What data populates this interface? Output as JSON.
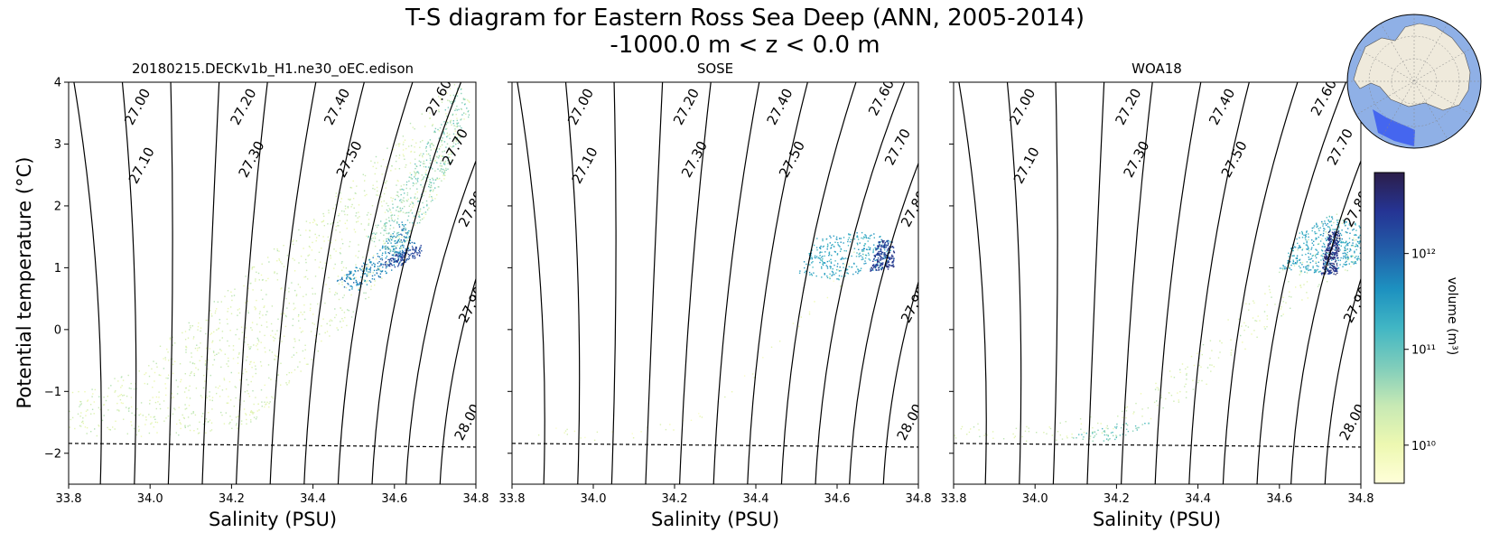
{
  "figure": {
    "title_line1": "T-S diagram for Eastern Ross Sea Deep (ANN, 2005-2014)",
    "title_line2": "-1000.0 m < z < 0.0 m"
  },
  "colorbar": {
    "label": "volume (m³)",
    "scale": "log",
    "range": [
      4000000000.0,
      7000000000000.0
    ],
    "ticks": [
      {
        "value": 10000000000.0,
        "label": "10¹⁰"
      },
      {
        "value": 100000000000.0,
        "label": "10¹¹"
      },
      {
        "value": 1000000000000.0,
        "label": "10¹²"
      }
    ],
    "colors": [
      "#ffffd9",
      "#edf8b1",
      "#c7e9b4",
      "#7fcdbb",
      "#41b6c4",
      "#1d91c0",
      "#225ea8",
      "#253494",
      "#2c1e4a"
    ]
  },
  "inset_map": {
    "ocean_color": "#8fb0e6",
    "land_color": "#efeadc",
    "region_color": "#3d5ef0"
  },
  "chart_data": [
    {
      "type": "scatter",
      "title": "20180215.DECKv1b_H1.ne30_oEC.edison",
      "xlabel": "Salinity (PSU)",
      "ylabel": "Potential temperature (°C)",
      "xlim": [
        33.8,
        34.8
      ],
      "ylim": [
        -2.5,
        4
      ],
      "xticks": [
        {
          "value": 33.8,
          "label": "33.8"
        },
        {
          "value": 34.0,
          "label": "34.0"
        },
        {
          "value": 34.2,
          "label": "34.2"
        },
        {
          "value": 34.4,
          "label": "34.4"
        },
        {
          "value": 34.6,
          "label": "34.6"
        },
        {
          "value": 34.8,
          "label": "34.8"
        }
      ],
      "yticks": [
        {
          "value": -2,
          "label": "−2"
        },
        {
          "value": -1,
          "label": "−1"
        },
        {
          "value": 0,
          "label": "0"
        },
        {
          "value": 1,
          "label": "1"
        },
        {
          "value": 2,
          "label": "2"
        },
        {
          "value": 3,
          "label": "3"
        },
        {
          "value": 4,
          "label": "4"
        }
      ],
      "freezing_line": [
        [
          33.8,
          -1.84
        ],
        [
          34.8,
          -1.9
        ]
      ],
      "density_contours": [
        {
          "label": "27.00",
          "label_at": [
            33.97,
            3.6
          ]
        },
        {
          "label": "27.10",
          "label_at": [
            33.98,
            2.65
          ]
        },
        {
          "label": "27.20",
          "label_at": [
            34.23,
            3.6
          ]
        },
        {
          "label": "27.30",
          "label_at": [
            34.25,
            2.75
          ]
        },
        {
          "label": "27.40",
          "label_at": [
            34.46,
            3.6
          ]
        },
        {
          "label": "27.50",
          "label_at": [
            34.49,
            2.75
          ]
        },
        {
          "label": "27.60",
          "label_at": [
            34.71,
            3.75
          ]
        },
        {
          "label": "27.70",
          "label_at": [
            34.75,
            2.95
          ]
        },
        {
          "label": "27.80",
          "label_at": [
            34.79,
            1.95
          ]
        },
        {
          "label": "27.90",
          "label_at": [
            34.79,
            0.4
          ]
        },
        {
          "label": "28.00",
          "label_at": [
            34.78,
            -1.5
          ]
        }
      ],
      "scatter_regions": [
        {
          "points": [
            [
              33.8,
              -1.0
            ],
            [
              33.95,
              -0.7
            ],
            [
              34.1,
              0.2
            ],
            [
              34.35,
              1.6
            ],
            [
              34.55,
              2.8
            ],
            [
              34.74,
              4.0
            ],
            [
              34.79,
              3.8
            ],
            [
              34.7,
              2.0
            ],
            [
              34.6,
              1.1
            ],
            [
              34.5,
              0.2
            ],
            [
              34.35,
              -0.8
            ],
            [
              34.25,
              -1.6
            ],
            [
              34.1,
              -1.72
            ],
            [
              33.8,
              -1.72
            ]
          ],
          "density": 0.022,
          "level": 0.2
        },
        {
          "points": [
            [
              34.53,
              1.5
            ],
            [
              34.58,
              2.0
            ],
            [
              34.64,
              2.6
            ],
            [
              34.7,
              3.3
            ],
            [
              34.76,
              4.0
            ],
            [
              34.79,
              3.6
            ],
            [
              34.72,
              2.4
            ],
            [
              34.65,
              1.6
            ],
            [
              34.6,
              1.2
            ]
          ],
          "density": 0.06,
          "level": 0.35
        },
        {
          "points": [
            [
              34.45,
              0.8
            ],
            [
              34.55,
              1.2
            ],
            [
              34.62,
              1.8
            ],
            [
              34.65,
              1.4
            ],
            [
              34.6,
              1.0
            ],
            [
              34.5,
              0.6
            ]
          ],
          "density": 0.12,
          "level": 0.65
        },
        {
          "points": [
            [
              34.56,
              1.05
            ],
            [
              34.62,
              1.3
            ],
            [
              34.67,
              1.38
            ],
            [
              34.66,
              1.18
            ],
            [
              34.6,
              1.0
            ]
          ],
          "density": 0.25,
          "level": 0.82
        }
      ]
    },
    {
      "type": "scatter",
      "title": "SOSE",
      "xlabel": "Salinity (PSU)",
      "xlim": [
        33.8,
        34.8
      ],
      "ylim": [
        -2.5,
        4
      ],
      "xticks": [
        {
          "value": 33.8,
          "label": "33.8"
        },
        {
          "value": 34.0,
          "label": "34.0"
        },
        {
          "value": 34.2,
          "label": "34.2"
        },
        {
          "value": 34.4,
          "label": "34.4"
        },
        {
          "value": 34.6,
          "label": "34.6"
        },
        {
          "value": 34.8,
          "label": "34.8"
        }
      ],
      "freezing_line": [
        [
          33.8,
          -1.84
        ],
        [
          34.8,
          -1.9
        ]
      ],
      "density_contours": [
        {
          "label": "27.00",
          "label_at": [
            33.97,
            3.6
          ]
        },
        {
          "label": "27.10",
          "label_at": [
            33.98,
            2.65
          ]
        },
        {
          "label": "27.20",
          "label_at": [
            34.23,
            3.6
          ]
        },
        {
          "label": "27.30",
          "label_at": [
            34.25,
            2.75
          ]
        },
        {
          "label": "27.40",
          "label_at": [
            34.46,
            3.6
          ]
        },
        {
          "label": "27.50",
          "label_at": [
            34.49,
            2.75
          ]
        },
        {
          "label": "27.60",
          "label_at": [
            34.71,
            3.75
          ]
        },
        {
          "label": "27.70",
          "label_at": [
            34.75,
            2.95
          ]
        },
        {
          "label": "27.80",
          "label_at": [
            34.79,
            1.95
          ]
        },
        {
          "label": "27.90",
          "label_at": [
            34.79,
            0.4
          ]
        },
        {
          "label": "28.00",
          "label_at": [
            34.78,
            -1.5
          ]
        }
      ],
      "scatter_regions": [
        {
          "points": [
            [
              33.8,
              -1.55
            ],
            [
              34.1,
              -1.6
            ],
            [
              34.3,
              -1.2
            ],
            [
              34.5,
              0.2
            ],
            [
              34.62,
              1.2
            ],
            [
              34.7,
              1.5
            ],
            [
              34.6,
              0.6
            ],
            [
              34.4,
              -0.8
            ],
            [
              34.2,
              -1.75
            ],
            [
              33.8,
              -1.82
            ]
          ],
          "density": 0.008,
          "level": 0.12
        },
        {
          "points": [
            [
              34.5,
              0.9
            ],
            [
              34.55,
              1.5
            ],
            [
              34.68,
              1.6
            ],
            [
              34.74,
              1.4
            ],
            [
              34.72,
              1.0
            ],
            [
              34.6,
              0.8
            ]
          ],
          "density": 0.08,
          "level": 0.55
        },
        {
          "points": [
            [
              34.68,
              0.95
            ],
            [
              34.7,
              1.45
            ],
            [
              34.74,
              1.45
            ],
            [
              34.74,
              1.0
            ]
          ],
          "density": 0.3,
          "level": 0.85
        }
      ]
    },
    {
      "type": "scatter",
      "title": "WOA18",
      "xlabel": "Salinity (PSU)",
      "xlim": [
        33.8,
        34.8
      ],
      "ylim": [
        -2.5,
        4
      ],
      "xticks": [
        {
          "value": 33.8,
          "label": "33.8"
        },
        {
          "value": 34.0,
          "label": "34.0"
        },
        {
          "value": 34.2,
          "label": "34.2"
        },
        {
          "value": 34.4,
          "label": "34.4"
        },
        {
          "value": 34.6,
          "label": "34.6"
        },
        {
          "value": 34.8,
          "label": "34.8"
        }
      ],
      "freezing_line": [
        [
          33.8,
          -1.84
        ],
        [
          34.8,
          -1.9
        ]
      ],
      "density_contours": [
        {
          "label": "27.00",
          "label_at": [
            33.97,
            3.6
          ]
        },
        {
          "label": "27.10",
          "label_at": [
            33.98,
            2.65
          ]
        },
        {
          "label": "27.20",
          "label_at": [
            34.23,
            3.6
          ]
        },
        {
          "label": "27.30",
          "label_at": [
            34.25,
            2.75
          ]
        },
        {
          "label": "27.40",
          "label_at": [
            34.46,
            3.6
          ]
        },
        {
          "label": "27.50",
          "label_at": [
            34.49,
            2.75
          ]
        },
        {
          "label": "27.60",
          "label_at": [
            34.71,
            3.75
          ]
        },
        {
          "label": "27.70",
          "label_at": [
            34.75,
            2.95
          ]
        },
        {
          "label": "27.80",
          "label_at": [
            34.79,
            1.95
          ]
        },
        {
          "label": "27.90",
          "label_at": [
            34.79,
            0.4
          ]
        },
        {
          "label": "28.00",
          "label_at": [
            34.78,
            -1.5
          ]
        }
      ],
      "scatter_regions": [
        {
          "points": [
            [
              33.8,
              -1.45
            ],
            [
              34.0,
              -1.55
            ],
            [
              34.2,
              -1.3
            ],
            [
              34.4,
              -0.3
            ],
            [
              34.6,
              1.0
            ],
            [
              34.72,
              1.9
            ],
            [
              34.8,
              1.8
            ],
            [
              34.78,
              1.0
            ],
            [
              34.6,
              0.2
            ],
            [
              34.4,
              -1.0
            ],
            [
              34.2,
              -1.75
            ],
            [
              34.0,
              -1.8
            ],
            [
              33.8,
              -1.75
            ]
          ],
          "density": 0.016,
          "level": 0.2
        },
        {
          "points": [
            [
              34.05,
              -1.8
            ],
            [
              34.2,
              -1.5
            ],
            [
              34.28,
              -1.5
            ],
            [
              34.2,
              -1.8
            ]
          ],
          "density": 0.05,
          "level": 0.4
        },
        {
          "points": [
            [
              34.6,
              1.0
            ],
            [
              34.65,
              1.6
            ],
            [
              34.72,
              1.85
            ],
            [
              34.8,
              1.7
            ],
            [
              34.8,
              1.1
            ],
            [
              34.7,
              0.9
            ]
          ],
          "density": 0.1,
          "level": 0.55
        },
        {
          "points": [
            [
              34.7,
              0.9
            ],
            [
              34.72,
              1.6
            ],
            [
              34.75,
              1.6
            ],
            [
              34.74,
              0.9
            ]
          ],
          "density": 0.4,
          "level": 0.9
        }
      ]
    }
  ]
}
